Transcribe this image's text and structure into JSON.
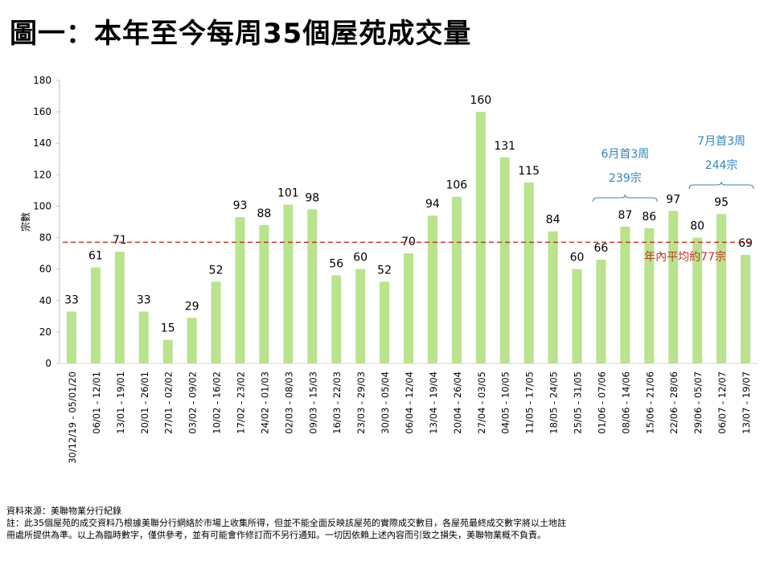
{
  "title": "圖一：本年至今每周35個屋苑成交量",
  "chart_data": {
    "type": "bar",
    "title": "圖一：本年至今每周35個屋苑成交量",
    "xlabel": "",
    "ylabel": "宗數",
    "ylim": [
      0,
      180
    ],
    "yticks": [
      0,
      20,
      40,
      60,
      80,
      100,
      120,
      140,
      160,
      180
    ],
    "grid": false,
    "bar_color": "#b9e38c",
    "categories": [
      "30/12/19 - 05/01/20",
      "06/01 - 12/01",
      "13/01 - 19/01",
      "20/01 - 26/01",
      "27/01 - 02/02",
      "03/02 - 09/02",
      "10/02 - 16/02",
      "17/02 - 23/02",
      "24/02 - 01/03",
      "02/03 - 08/03",
      "09/03 - 15/03",
      "16/03 - 22/03",
      "23/03 - 29/03",
      "30/03 - 05/04",
      "06/04 - 12/04",
      "13/04 - 19/04",
      "20/04 - 26/04",
      "27/04 - 03/05",
      "04/05 - 10/05",
      "11/05 - 17/05",
      "18/05 - 24/05",
      "25/05 - 31/05",
      "01/06 - 07/06",
      "08/06 - 14/06",
      "15/06 - 21/06",
      "22/06 - 28/06",
      "29/06 - 05/07",
      "06/07 - 12/07",
      "13/07 - 19/07"
    ],
    "values": [
      33,
      61,
      71,
      33,
      15,
      29,
      52,
      93,
      88,
      101,
      98,
      56,
      60,
      52,
      70,
      94,
      106,
      160,
      131,
      115,
      84,
      60,
      66,
      87,
      86,
      97,
      80,
      95,
      69
    ],
    "reference_line": {
      "value": 77,
      "label": "年內平均約77宗",
      "color": "#c0392b",
      "style": "dashed"
    },
    "annotations": [
      {
        "line1": "6月首3周",
        "line2": "239宗",
        "from_index": 22,
        "to_index": 24,
        "color": "#2e86c1"
      },
      {
        "line1": "7月首3周",
        "line2": "244宗",
        "from_index": 26,
        "to_index": 28,
        "color": "#2e86c1"
      }
    ]
  },
  "notes": {
    "source": "資料來源：美聯物業分行紀錄",
    "note_line1": "註：此35個屋苑的成交資料乃根據美聯分行網絡於市場上收集所得，但並不能全面反映該屋苑的實際成交數目，各屋苑最終成交數字將以土地註",
    "note_line2": "冊處所提供為準。以上為臨時數字，僅供參考，並有可能會作修訂而不另行通知。一切因依賴上述內容而引致之損失，美聯物業概不負責。"
  }
}
